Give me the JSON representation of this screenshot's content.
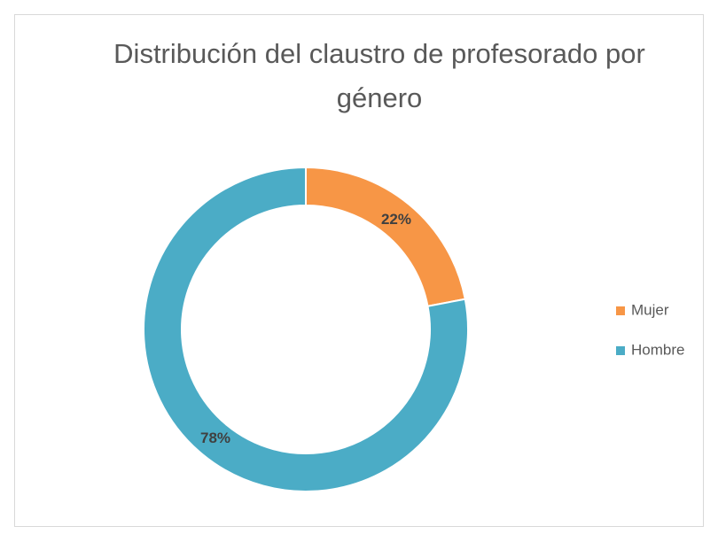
{
  "chart_data": {
    "type": "donut",
    "title": "Distribución del claustro de profesorado por género",
    "categories": [
      "Mujer",
      "Hombre"
    ],
    "values": [
      22,
      78
    ],
    "value_labels": [
      "22%",
      "78%"
    ],
    "colors": [
      "#F79646",
      "#4BACC6"
    ],
    "legend": "right"
  }
}
